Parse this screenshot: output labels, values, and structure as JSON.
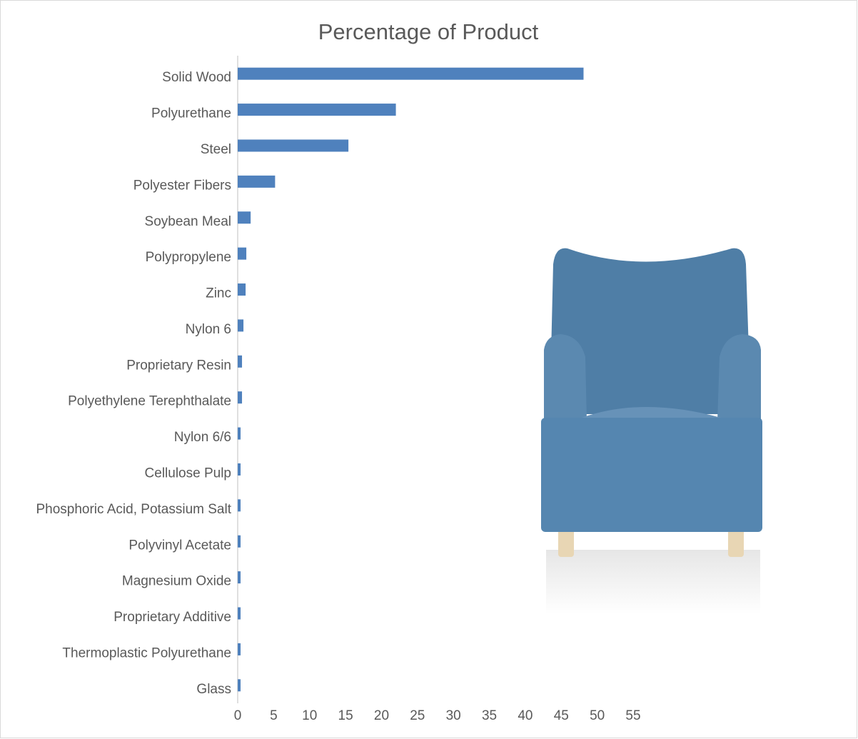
{
  "chart_data": {
    "type": "hbar",
    "title": "Percentage of Product",
    "categories": [
      "Solid Wood",
      "Polyurethane",
      "Steel",
      "Polyester Fibers",
      "Soybean Meal",
      "Polypropylene",
      "Zinc",
      "Nylon 6",
      "Proprietary Resin",
      "Polyethylene Terephthalate",
      "Nylon 6/6",
      "Cellulose Pulp",
      "Phosphoric Acid, Potassium Salt",
      "Polyvinyl Acetate",
      "Magnesium Oxide",
      "Proprietary Additive",
      "Thermoplastic Polyurethane",
      "Glass"
    ],
    "values": [
      48.1,
      22.0,
      15.4,
      5.2,
      1.8,
      1.2,
      1.1,
      0.8,
      0.6,
      0.6,
      0.4,
      0.4,
      0.4,
      0.4,
      0.4,
      0.4,
      0.4,
      0.4
    ],
    "color": "#4f81bd",
    "xlim": [
      0,
      55
    ],
    "xticks": [
      0,
      5,
      10,
      15,
      20,
      25,
      30,
      35,
      40,
      45,
      50,
      55
    ]
  }
}
